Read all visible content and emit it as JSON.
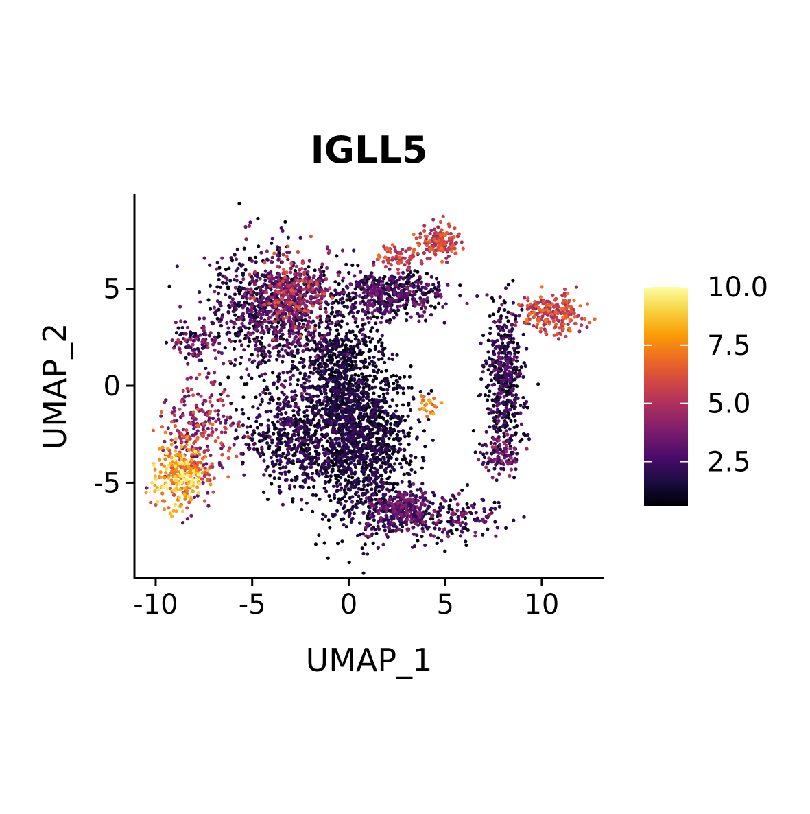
{
  "chart_data": {
    "type": "scatter",
    "title": "IGLL5",
    "xlabel": "UMAP_1",
    "ylabel": "UMAP_2",
    "xlim": [
      -11.1,
      13.2
    ],
    "ylim": [
      -9.9,
      9.9
    ],
    "x_ticks": [
      -10,
      -5,
      0,
      5,
      10
    ],
    "x_tick_labels": [
      "-10",
      "-5",
      "0",
      "5",
      "10"
    ],
    "y_ticks": [
      -5,
      0,
      5
    ],
    "y_tick_labels": [
      "-5",
      "0",
      "5"
    ],
    "grid": false,
    "colorbar": {
      "min": 0.6,
      "max": 10.0,
      "ticks": [
        2.5,
        5.0,
        7.5,
        10.0
      ],
      "tick_labels": [
        "2.5",
        "5.0",
        "7.5",
        "10.0"
      ],
      "colormap": "inferno",
      "colors": [
        "#000004",
        "#1b0c41",
        "#4a0c6b",
        "#781c6d",
        "#a52c60",
        "#cf4446",
        "#ed6925",
        "#fb9b06",
        "#f7d13d",
        "#fcffa4"
      ],
      "position": "right"
    },
    "clusters": [
      {
        "region": "upper-left blob",
        "center": [
          -4.0,
          3.8
        ],
        "spread": [
          1.7,
          1.6
        ],
        "count": 900,
        "expression": [
          0.6,
          4.2
        ]
      },
      {
        "region": "upper-left hot patch",
        "center": [
          -2.8,
          4.8
        ],
        "spread": [
          1.0,
          0.9
        ],
        "count": 280,
        "expression": [
          3.0,
          6.6
        ]
      },
      {
        "region": "left arc",
        "center": [
          -7.8,
          -2.5
        ],
        "spread": [
          0.9,
          1.5
        ],
        "count": 260,
        "expression": [
          3.0,
          7.0
        ]
      },
      {
        "region": "far-left hot cluster",
        "center": [
          -8.7,
          -4.6
        ],
        "spread": [
          0.7,
          0.8
        ],
        "count": 260,
        "expression": [
          6.0,
          10.0
        ]
      },
      {
        "region": "left small lobe",
        "center": [
          -8.1,
          2.2
        ],
        "spread": [
          0.6,
          0.5
        ],
        "count": 80,
        "expression": [
          1.0,
          5.5
        ]
      },
      {
        "region": "central mass",
        "center": [
          0.5,
          -2.8
        ],
        "spread": [
          1.3,
          2.0
        ],
        "count": 1400,
        "expression": [
          0.6,
          2.4
        ]
      },
      {
        "region": "central column",
        "center": [
          -0.5,
          1.0
        ],
        "spread": [
          0.9,
          1.6
        ],
        "count": 500,
        "expression": [
          0.6,
          2.0
        ]
      },
      {
        "region": "left-lower arc",
        "center": [
          -3.0,
          -2.4
        ],
        "spread": [
          1.3,
          1.4
        ],
        "count": 500,
        "expression": [
          0.6,
          3.2
        ]
      },
      {
        "region": "bottom cluster",
        "center": [
          2.6,
          -6.5
        ],
        "spread": [
          0.8,
          0.6
        ],
        "count": 300,
        "expression": [
          1.5,
          4.2
        ]
      },
      {
        "region": "upper-middle band",
        "center": [
          2.2,
          4.7
        ],
        "spread": [
          1.4,
          0.6
        ],
        "count": 500,
        "expression": [
          0.6,
          4.0
        ]
      },
      {
        "region": "top hot peak",
        "center": [
          4.8,
          7.4
        ],
        "spread": [
          0.5,
          0.4
        ],
        "count": 140,
        "expression": [
          4.5,
          7.2
        ]
      },
      {
        "region": "top-left hot arm",
        "center": [
          2.5,
          6.6
        ],
        "spread": [
          0.6,
          0.3
        ],
        "count": 70,
        "expression": [
          4.5,
          7.0
        ]
      },
      {
        "region": "right hot cluster",
        "center": [
          10.5,
          3.7
        ],
        "spread": [
          0.8,
          0.5
        ],
        "count": 220,
        "expression": [
          4.5,
          7.3
        ]
      },
      {
        "region": "right vertical column",
        "center": [
          8.1,
          0.5
        ],
        "spread": [
          0.5,
          1.8
        ],
        "count": 450,
        "expression": [
          0.6,
          3.5
        ]
      },
      {
        "region": "lower-right lobe",
        "center": [
          7.8,
          -3.6
        ],
        "spread": [
          0.6,
          0.5
        ],
        "count": 100,
        "expression": [
          1.5,
          5.0
        ]
      },
      {
        "region": "bottom-right tail",
        "center": [
          5.1,
          -6.8
        ],
        "spread": [
          1.3,
          0.6
        ],
        "count": 200,
        "expression": [
          0.6,
          4.5
        ]
      },
      {
        "region": "middle small stripe",
        "center": [
          4.0,
          -1.0
        ],
        "spread": [
          0.3,
          0.3
        ],
        "count": 25,
        "expression": [
          6.5,
          8.5
        ]
      }
    ]
  }
}
